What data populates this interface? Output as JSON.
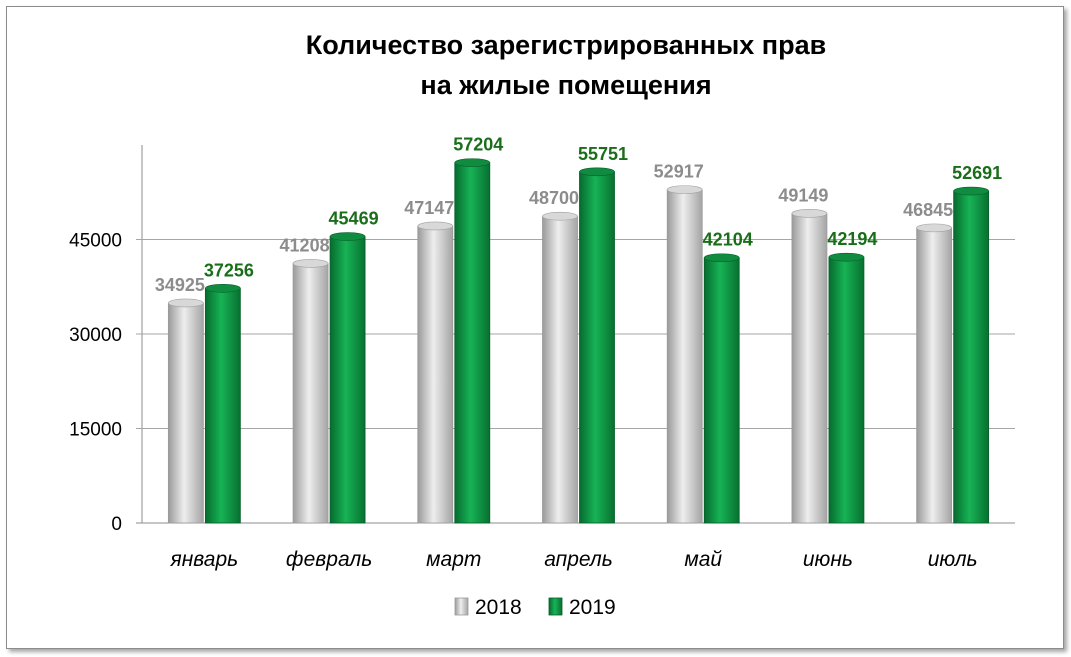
{
  "chart_data": {
    "type": "bar",
    "title": "Количество зарегистрированных прав\nна жилые помещения",
    "title_lines": [
      "Количество зарегистрированных прав",
      "на жилые помещения"
    ],
    "categories": [
      "январь",
      "февраль",
      "март",
      "апрель",
      "май",
      "июнь",
      "июль"
    ],
    "series": [
      {
        "name": "2018",
        "values": [
          34925,
          41208,
          47147,
          48700,
          52917,
          49149,
          46845
        ],
        "color": "#c8c8c8",
        "label_color": "#8c8c8c"
      },
      {
        "name": "2019",
        "values": [
          37256,
          45469,
          57204,
          55751,
          42104,
          42194,
          52691
        ],
        "color": "#0e9a48",
        "label_color": "#1a6e1a"
      }
    ],
    "yticks": [
      0,
      15000,
      30000,
      45000
    ],
    "ylim": [
      0,
      60000
    ],
    "grid": true,
    "legend": "bottom"
  }
}
